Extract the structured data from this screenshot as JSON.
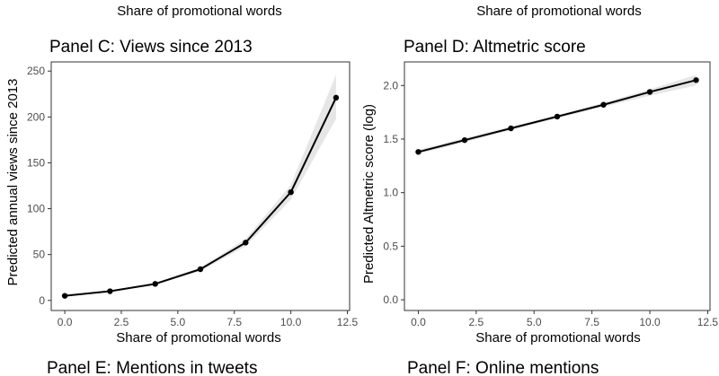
{
  "top_labels": {
    "left": "Share of promotional words",
    "right": "Share of promotional words"
  },
  "bottom_titles": {
    "left": "Panel E: Mentions in tweets",
    "right": "Panel F: Online mentions"
  },
  "chart_data": [
    {
      "type": "line",
      "title": "Panel C: Views since 2013",
      "xlabel": "Share of promotional words",
      "ylabel": "Predicted annual views since 2013",
      "xlim": [
        -0.6,
        12.6
      ],
      "ylim": [
        -11,
        260
      ],
      "x_ticks": [
        0,
        2.5,
        5,
        7.5,
        10,
        12.5
      ],
      "x_tick_labels": [
        "0.0",
        "2.5",
        "5.0",
        "7.5",
        "10.0",
        "12.5"
      ],
      "y_ticks": [
        0,
        50,
        100,
        150,
        200,
        250
      ],
      "y_tick_labels": [
        "0",
        "50",
        "100",
        "150",
        "200",
        "250"
      ],
      "grid": false,
      "band_color": "#e6e6e6",
      "line_color": "#000000",
      "series": [
        {
          "x": [
            0,
            2,
            4,
            6,
            8,
            10,
            12
          ],
          "y": [
            5,
            10,
            18,
            34,
            63,
            118,
            221
          ],
          "lower": [
            4,
            9,
            17,
            32,
            59,
            110,
            198
          ],
          "upper": [
            6,
            11,
            19,
            36,
            67,
            126,
            246
          ]
        }
      ]
    },
    {
      "type": "line",
      "title": "Panel D: Altmetric score",
      "xlabel": "Share of promotional words",
      "ylabel": "Predicted Altmetric score (log)",
      "xlim": [
        -0.6,
        12.6
      ],
      "ylim": [
        -0.1,
        2.22
      ],
      "x_ticks": [
        0,
        2.5,
        5,
        7.5,
        10,
        12.5
      ],
      "x_tick_labels": [
        "0.0",
        "2.5",
        "5.0",
        "7.5",
        "10.0",
        "12.5"
      ],
      "y_ticks": [
        0,
        0.5,
        1,
        1.5,
        2
      ],
      "y_tick_labels": [
        "0.0",
        "0.5",
        "1.0",
        "1.5",
        "2.0"
      ],
      "grid": false,
      "band_color": "#e6e6e6",
      "line_color": "#000000",
      "series": [
        {
          "x": [
            0,
            2,
            4,
            6,
            8,
            10,
            12
          ],
          "y": [
            1.38,
            1.49,
            1.6,
            1.71,
            1.82,
            1.94,
            2.05
          ],
          "lower": [
            1.36,
            1.47,
            1.585,
            1.695,
            1.8,
            1.905,
            2.0
          ],
          "upper": [
            1.4,
            1.51,
            1.615,
            1.725,
            1.84,
            1.965,
            2.1
          ]
        }
      ]
    }
  ]
}
